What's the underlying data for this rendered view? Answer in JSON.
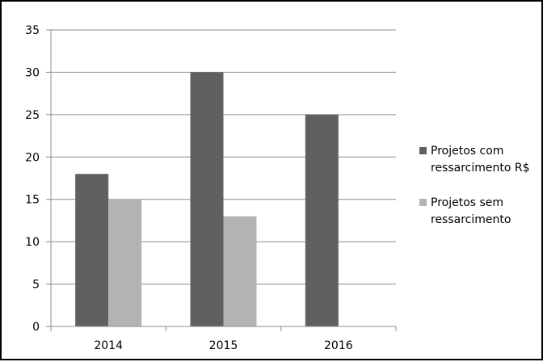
{
  "chart_data": {
    "type": "bar",
    "categories": [
      "2014",
      "2015",
      "2016"
    ],
    "series": [
      {
        "name": "Projetos com ressarcimento R$",
        "name_lines": [
          "Projetos com",
          "ressarcimento R$"
        ],
        "values": [
          18,
          30,
          25
        ],
        "color": "#606060"
      },
      {
        "name": "Projetos sem ressarcimento",
        "name_lines": [
          "Projetos sem",
          "ressarcimento"
        ],
        "values": [
          15,
          13,
          0
        ],
        "color": "#b3b3b3"
      }
    ],
    "ylim": [
      0,
      35
    ],
    "yticks": [
      "0",
      "5",
      "10",
      "15",
      "20",
      "25",
      "30",
      "35"
    ],
    "xlabel": "",
    "ylabel": "",
    "title": "",
    "grid": true,
    "legend": "right"
  }
}
